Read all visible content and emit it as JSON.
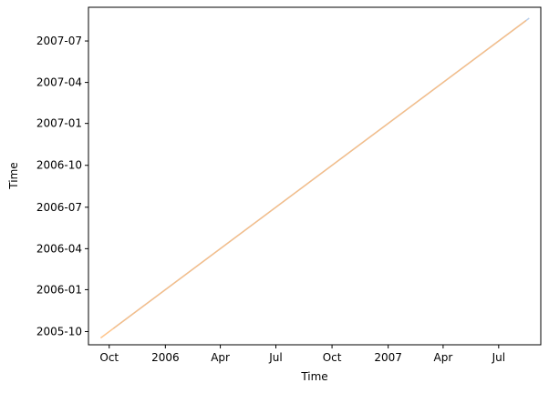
{
  "chart_data": {
    "type": "line",
    "title": "",
    "xlabel": "Time",
    "ylabel": "Time",
    "xlim": [
      "2005-08-28",
      "2007-09-08"
    ],
    "ylim": [
      "2005-09-02",
      "2007-09-13"
    ],
    "x_ticks": [
      {
        "date": "2005-10-01",
        "label": "Oct"
      },
      {
        "date": "2006-01-01",
        "label": "2006"
      },
      {
        "date": "2006-04-01",
        "label": "Apr"
      },
      {
        "date": "2006-07-01",
        "label": "Jul"
      },
      {
        "date": "2006-10-01",
        "label": "Oct"
      },
      {
        "date": "2007-01-01",
        "label": "2007"
      },
      {
        "date": "2007-04-01",
        "label": "Apr"
      },
      {
        "date": "2007-07-01",
        "label": "Jul"
      }
    ],
    "y_ticks": [
      {
        "date": "2005-10-01",
        "label": "2005-10"
      },
      {
        "date": "2006-01-01",
        "label": "2006-01"
      },
      {
        "date": "2006-04-01",
        "label": "2006-04"
      },
      {
        "date": "2006-07-01",
        "label": "2006-07"
      },
      {
        "date": "2006-10-01",
        "label": "2006-10"
      },
      {
        "date": "2007-01-01",
        "label": "2007-01"
      },
      {
        "date": "2007-04-01",
        "label": "2007-04"
      },
      {
        "date": "2007-07-01",
        "label": "2007-07"
      }
    ],
    "grid": false,
    "series": [
      {
        "color": "#aec7e8",
        "points": [
          {
            "x": "2005-10-08",
            "y": "2005-10-08"
          },
          {
            "x": "2007-08-20",
            "y": "2007-08-20"
          }
        ]
      },
      {
        "color": "#ffbb78",
        "points": [
          {
            "x": "2005-09-17",
            "y": "2005-09-17"
          },
          {
            "x": "2007-08-15",
            "y": "2007-08-15"
          }
        ]
      }
    ]
  }
}
